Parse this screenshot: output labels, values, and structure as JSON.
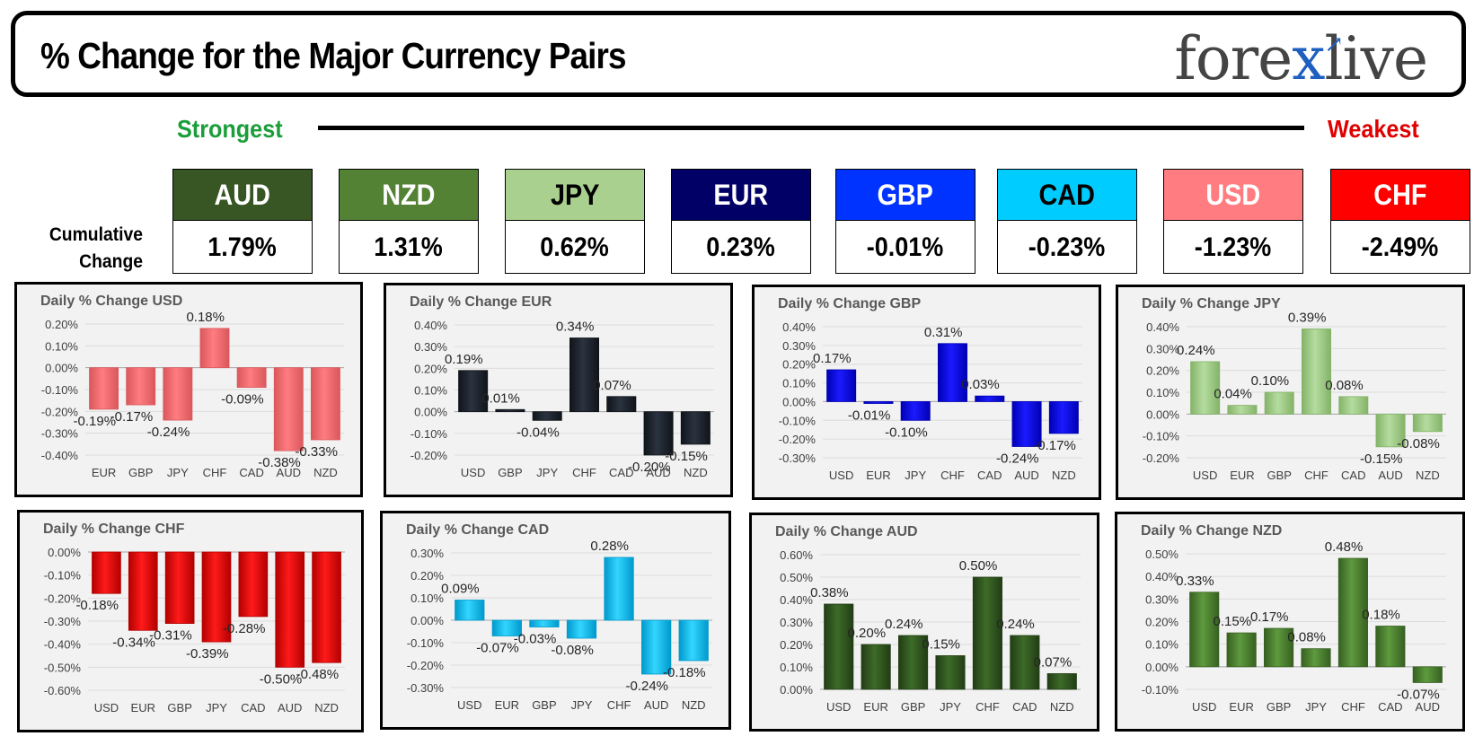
{
  "header": {
    "title": "% Change for the Major Currency Pairs",
    "logo": "forexlive"
  },
  "ranking": {
    "strongest_label": "Strongest",
    "weakest_label": "Weakest",
    "cumulative_label_line1": "Cumulative",
    "cumulative_label_line2": "Change",
    "currencies": [
      {
        "name": "AUD",
        "value": "1.79%",
        "bg": "#375623",
        "fg": "#ffffff"
      },
      {
        "name": "NZD",
        "value": "1.31%",
        "bg": "#548235",
        "fg": "#ffffff"
      },
      {
        "name": "JPY",
        "value": "0.62%",
        "bg": "#a9d08e",
        "fg": "#000000"
      },
      {
        "name": "EUR",
        "value": "0.23%",
        "bg": "#000066",
        "fg": "#ffffff"
      },
      {
        "name": "GBP",
        "value": "-0.01%",
        "bg": "#0033ff",
        "fg": "#ffffff"
      },
      {
        "name": "CAD",
        "value": "-0.23%",
        "bg": "#00ccff",
        "fg": "#000000"
      },
      {
        "name": "USD",
        "value": "-1.23%",
        "bg": "#ff7c80",
        "fg": "#ffffff"
      },
      {
        "name": "CHF",
        "value": "-2.49%",
        "bg": "#ff0000",
        "fg": "#ffffff"
      }
    ]
  },
  "chart_data": [
    {
      "type": "bar",
      "title": "Daily % Change USD",
      "categories": [
        "EUR",
        "GBP",
        "JPY",
        "CHF",
        "CAD",
        "AUD",
        "NZD"
      ],
      "values": [
        -0.19,
        -0.17,
        -0.24,
        0.18,
        -0.09,
        -0.38,
        -0.33
      ],
      "ylim": [
        -0.4,
        0.2
      ],
      "yticks": [
        "-0.40%",
        "-0.30%",
        "-0.20%",
        "-0.10%",
        "0.00%",
        "0.10%",
        "0.20%"
      ],
      "labels": [
        "-0.19%",
        "-0.17%",
        "-0.24%",
        "0.18%",
        "-0.09%",
        "-0.38%",
        "-0.33%"
      ],
      "color": "#ff7c80",
      "color_dark": "#d9585c"
    },
    {
      "type": "bar",
      "title": "Daily % Change EUR",
      "categories": [
        "USD",
        "GBP",
        "JPY",
        "CHF",
        "CAD",
        "AUD",
        "NZD"
      ],
      "values": [
        0.19,
        0.01,
        -0.04,
        0.34,
        0.07,
        -0.2,
        -0.15
      ],
      "ylim": [
        -0.2,
        0.4
      ],
      "yticks": [
        "-0.20%",
        "-0.10%",
        "0.00%",
        "0.10%",
        "0.20%",
        "0.30%",
        "0.40%"
      ],
      "labels": [
        "0.19%",
        "0.01%",
        "-0.04%",
        "0.34%",
        "0.07%",
        "-0.20%",
        "-0.15%"
      ],
      "color": "#2b3340",
      "color_dark": "#10141a"
    },
    {
      "type": "bar",
      "title": "Daily % Change GBP",
      "categories": [
        "USD",
        "EUR",
        "JPY",
        "CHF",
        "CAD",
        "AUD",
        "NZD"
      ],
      "values": [
        0.17,
        -0.01,
        -0.1,
        0.31,
        0.03,
        -0.24,
        -0.17
      ],
      "ylim": [
        -0.3,
        0.4
      ],
      "yticks": [
        "-0.30%",
        "-0.20%",
        "-0.10%",
        "0.00%",
        "0.10%",
        "0.20%",
        "0.30%",
        "0.40%"
      ],
      "labels": [
        "0.17%",
        "-0.01%",
        "-0.10%",
        "0.31%",
        "0.03%",
        "-0.24%",
        "-0.17%"
      ],
      "color": "#1a1aff",
      "color_dark": "#0000b3"
    },
    {
      "type": "bar",
      "title": "Daily % Change JPY",
      "categories": [
        "USD",
        "EUR",
        "GBP",
        "CHF",
        "CAD",
        "AUD",
        "NZD"
      ],
      "values": [
        0.24,
        0.04,
        0.1,
        0.39,
        0.08,
        -0.15,
        -0.08
      ],
      "ylim": [
        -0.2,
        0.4
      ],
      "yticks": [
        "-0.20%",
        "-0.10%",
        "0.00%",
        "0.10%",
        "0.20%",
        "0.30%",
        "0.40%"
      ],
      "labels": [
        "0.24%",
        "0.04%",
        "0.10%",
        "0.39%",
        "0.08%",
        "-0.15%",
        "-0.08%"
      ],
      "color": "#b5dca0",
      "color_dark": "#84b368"
    },
    {
      "type": "bar",
      "title": "Daily % Change CHF",
      "categories": [
        "USD",
        "EUR",
        "GBP",
        "JPY",
        "CAD",
        "AUD",
        "NZD"
      ],
      "values": [
        -0.18,
        -0.34,
        -0.31,
        -0.39,
        -0.28,
        -0.5,
        -0.48
      ],
      "ylim": [
        -0.6,
        0.0
      ],
      "yticks": [
        "-0.60%",
        "-0.50%",
        "-0.40%",
        "-0.30%",
        "-0.20%",
        "-0.10%",
        "0.00%"
      ],
      "labels": [
        "-0.18%",
        "-0.34%",
        "-0.31%",
        "-0.39%",
        "-0.28%",
        "-0.50%",
        "-0.48%"
      ],
      "color": "#ff1a1a",
      "color_dark": "#b30000"
    },
    {
      "type": "bar",
      "title": "Daily % Change CAD",
      "categories": [
        "USD",
        "EUR",
        "GBP",
        "JPY",
        "CHF",
        "AUD",
        "NZD"
      ],
      "values": [
        0.09,
        -0.07,
        -0.03,
        -0.08,
        0.28,
        -0.24,
        -0.18
      ],
      "ylim": [
        -0.3,
        0.3
      ],
      "yticks": [
        "-0.30%",
        "-0.20%",
        "-0.10%",
        "0.00%",
        "0.10%",
        "0.20%",
        "0.30%"
      ],
      "labels": [
        "0.09%",
        "-0.07%",
        "-0.03%",
        "-0.08%",
        "0.28%",
        "-0.24%",
        "-0.18%"
      ],
      "color": "#33d6ff",
      "color_dark": "#0099cc"
    },
    {
      "type": "bar",
      "title": "Daily % Change AUD",
      "categories": [
        "USD",
        "EUR",
        "GBP",
        "JPY",
        "CHF",
        "CAD",
        "NZD"
      ],
      "values": [
        0.38,
        0.2,
        0.24,
        0.15,
        0.5,
        0.24,
        0.07
      ],
      "ylim": [
        0.0,
        0.6
      ],
      "yticks": [
        "0.00%",
        "0.10%",
        "0.20%",
        "0.30%",
        "0.40%",
        "0.50%",
        "0.60%"
      ],
      "labels": [
        "0.38%",
        "0.20%",
        "0.24%",
        "0.15%",
        "0.50%",
        "0.24%",
        "0.07%"
      ],
      "color": "#3d6b28",
      "color_dark": "#223d15"
    },
    {
      "type": "bar",
      "title": "Daily % Change NZD",
      "categories": [
        "USD",
        "EUR",
        "GBP",
        "JPY",
        "CHF",
        "CAD",
        "AUD"
      ],
      "values": [
        0.33,
        0.15,
        0.17,
        0.08,
        0.48,
        0.18,
        -0.07
      ],
      "ylim": [
        -0.1,
        0.5
      ],
      "yticks": [
        "-0.10%",
        "0.00%",
        "0.10%",
        "0.20%",
        "0.30%",
        "0.40%",
        "0.50%"
      ],
      "labels": [
        "0.33%",
        "0.15%",
        "0.17%",
        "0.08%",
        "0.48%",
        "0.18%",
        "-0.07%"
      ],
      "color": "#5e9a3e",
      "color_dark": "#376021"
    }
  ]
}
